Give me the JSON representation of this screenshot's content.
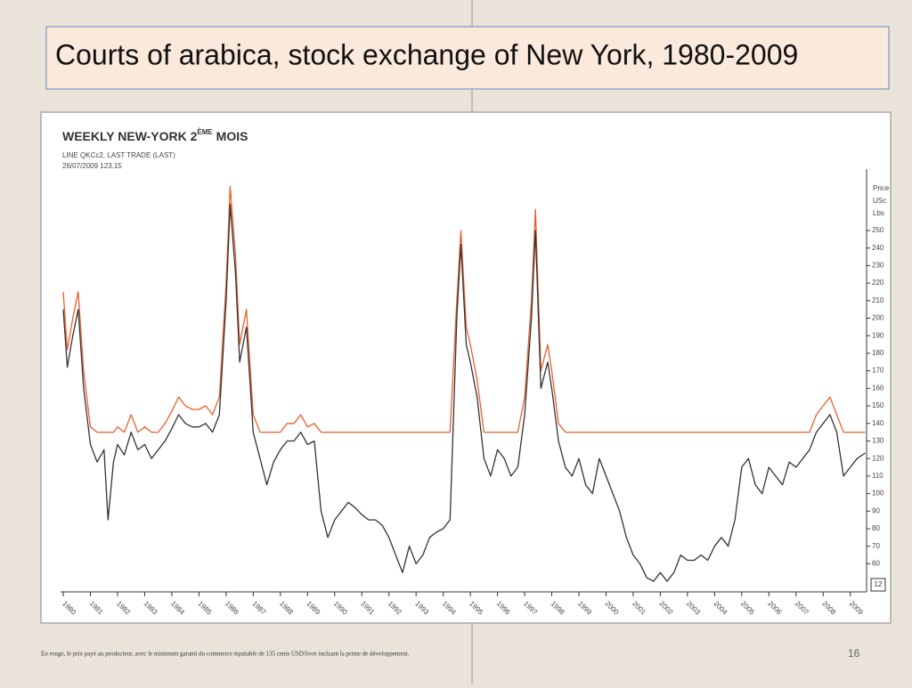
{
  "slide_title": "Courts of arabica, stock exchange of New York, 1980-2009",
  "footnote": "En rouge, le prix payé au producteur, avec le minimum garanti du commerce équitable de 135 cents USD/livre incluant la prime de développement.",
  "page_number": "16",
  "chart_data": {
    "type": "line",
    "title": [
      "WEEKLY NEW-YORK 2",
      "ÈME",
      " MOIS"
    ],
    "subtitle": [
      "LINE QKCc2, LAST TRADE (LAST)",
      "26/07/2009 123.15"
    ],
    "y_label": [
      "Price",
      "USc",
      "Lbs"
    ],
    "axis_badge": "12",
    "x": [
      1980.0,
      1980.15,
      1980.35,
      1980.55,
      1980.75,
      1981.0,
      1981.25,
      1981.5,
      1981.65,
      1981.85,
      1982.0,
      1982.25,
      1982.5,
      1982.75,
      1983.0,
      1983.25,
      1983.5,
      1983.75,
      1984.0,
      1984.25,
      1984.5,
      1984.75,
      1985.0,
      1985.25,
      1985.5,
      1985.75,
      1986.0,
      1986.15,
      1986.35,
      1986.5,
      1986.75,
      1987.0,
      1987.25,
      1987.5,
      1987.75,
      1988.0,
      1988.25,
      1988.5,
      1988.75,
      1989.0,
      1989.25,
      1989.5,
      1989.75,
      1990.0,
      1990.25,
      1990.5,
      1990.75,
      1991.0,
      1991.25,
      1991.5,
      1991.75,
      1992.0,
      1992.25,
      1992.5,
      1992.75,
      1993.0,
      1993.25,
      1993.5,
      1993.75,
      1994.0,
      1994.25,
      1994.5,
      1994.65,
      1994.85,
      1995.0,
      1995.25,
      1995.5,
      1995.75,
      1996.0,
      1996.25,
      1996.5,
      1996.75,
      1997.0,
      1997.25,
      1997.4,
      1997.6,
      1997.85,
      1998.0,
      1998.25,
      1998.5,
      1998.75,
      1999.0,
      1999.25,
      1999.5,
      1999.75,
      2000.0,
      2000.25,
      2000.5,
      2000.75,
      2001.0,
      2001.25,
      2001.5,
      2001.75,
      2002.0,
      2002.25,
      2002.5,
      2002.75,
      2003.0,
      2003.25,
      2003.5,
      2003.75,
      2004.0,
      2004.25,
      2004.5,
      2004.75,
      2005.0,
      2005.25,
      2005.5,
      2005.75,
      2006.0,
      2006.25,
      2006.5,
      2006.75,
      2007.0,
      2007.25,
      2007.5,
      2007.75,
      2008.0,
      2008.25,
      2008.5,
      2008.75,
      2009.0,
      2009.25,
      2009.55
    ],
    "series": [
      {
        "color": "#e8602c",
        "values": [
          215,
          182,
          200,
          215,
          170,
          138,
          135,
          135,
          135,
          135,
          138,
          135,
          145,
          135,
          138,
          135,
          135,
          140,
          147,
          155,
          150,
          148,
          148,
          150,
          145,
          155,
          220,
          275,
          235,
          185,
          205,
          145,
          135,
          135,
          135,
          135,
          140,
          140,
          145,
          138,
          140,
          135,
          135,
          135,
          135,
          135,
          135,
          135,
          135,
          135,
          135,
          135,
          135,
          135,
          135,
          135,
          135,
          135,
          135,
          135,
          135,
          210,
          250,
          195,
          185,
          165,
          135,
          135,
          135,
          135,
          135,
          135,
          155,
          210,
          262,
          170,
          185,
          170,
          140,
          135,
          135,
          135,
          135,
          135,
          135,
          135,
          135,
          135,
          135,
          135,
          135,
          135,
          135,
          135,
          135,
          135,
          135,
          135,
          135,
          135,
          135,
          135,
          135,
          135,
          135,
          135,
          135,
          135,
          135,
          135,
          135,
          135,
          135,
          135,
          135,
          135,
          145,
          150,
          155,
          145,
          135,
          135,
          135,
          135
        ]
      },
      {
        "color": "#333333",
        "values": [
          205,
          172,
          190,
          205,
          160,
          128,
          118,
          125,
          85,
          118,
          128,
          122,
          135,
          125,
          128,
          120,
          125,
          130,
          137,
          145,
          140,
          138,
          138,
          140,
          135,
          145,
          210,
          265,
          225,
          175,
          195,
          135,
          120,
          105,
          118,
          125,
          130,
          130,
          135,
          128,
          130,
          90,
          75,
          85,
          90,
          95,
          92,
          88,
          85,
          85,
          82,
          75,
          65,
          55,
          70,
          60,
          65,
          75,
          78,
          80,
          85,
          200,
          242,
          185,
          175,
          155,
          120,
          110,
          125,
          120,
          110,
          115,
          145,
          200,
          250,
          160,
          175,
          160,
          130,
          115,
          110,
          120,
          105,
          100,
          120,
          110,
          100,
          90,
          75,
          65,
          60,
          52,
          50,
          55,
          50,
          55,
          65,
          62,
          62,
          65,
          62,
          70,
          75,
          70,
          85,
          115,
          120,
          105,
          100,
          115,
          110,
          105,
          118,
          115,
          120,
          125,
          135,
          140,
          145,
          135,
          110,
          115,
          120,
          123.15
        ]
      }
    ],
    "xlim": [
      1979.9,
      2009.6
    ],
    "xticks": [
      1980,
      1981,
      1982,
      1983,
      1984,
      1985,
      1986,
      1987,
      1988,
      1989,
      1990,
      1991,
      1992,
      1993,
      1994,
      1995,
      1996,
      1997,
      1998,
      1999,
      2000,
      2001,
      2002,
      2003,
      2004,
      2005,
      2006,
      2007,
      2008,
      2009
    ],
    "ylim": [
      46,
      285
    ],
    "yticks": [
      60,
      70,
      80,
      90,
      100,
      110,
      120,
      130,
      140,
      150,
      160,
      170,
      180,
      190,
      200,
      210,
      220,
      230,
      240,
      250
    ]
  }
}
